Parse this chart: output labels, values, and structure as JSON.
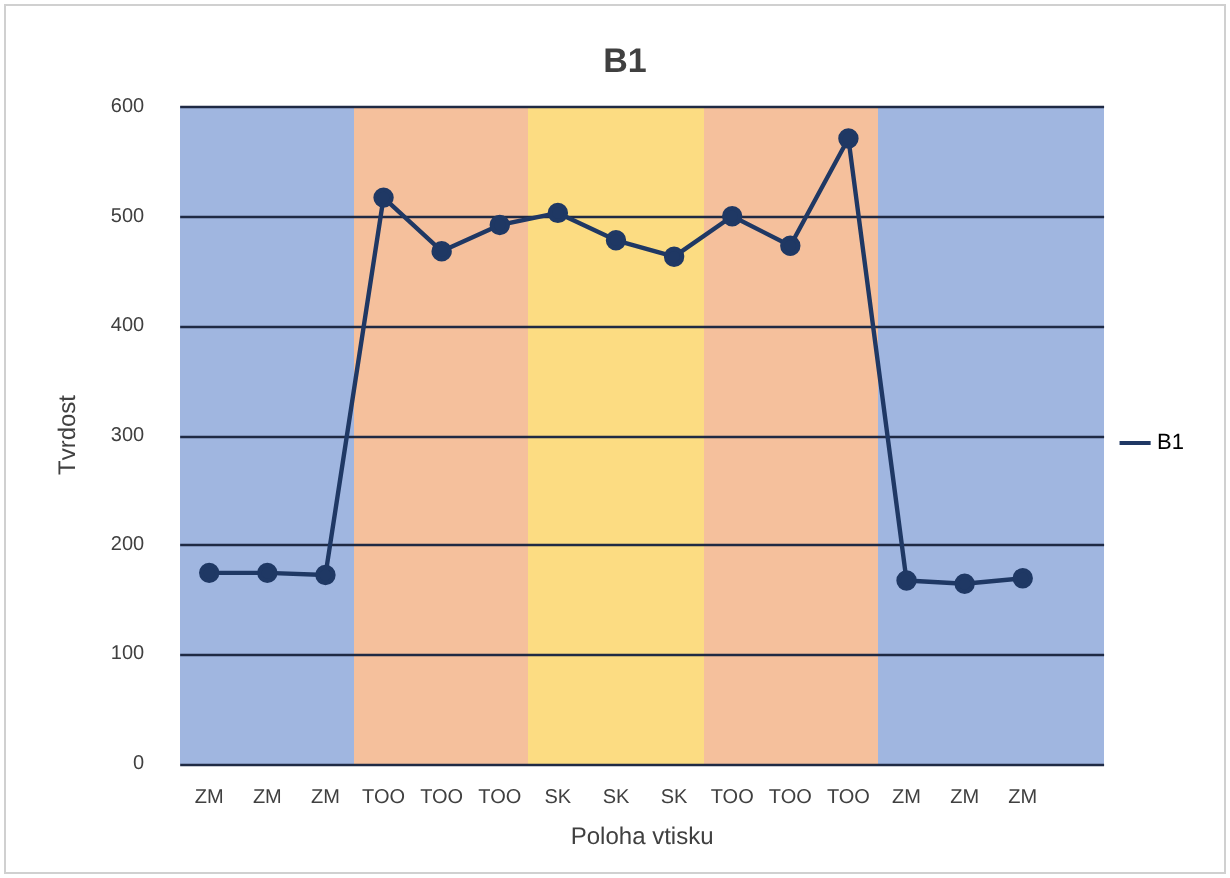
{
  "chart_data": {
    "type": "line",
    "title": "B1",
    "xlabel": "Poloha vtisku",
    "ylabel": "Tvrdost",
    "categories": [
      "ZM",
      "ZM",
      "ZM",
      "TOO",
      "TOO",
      "TOO",
      "SK",
      "SK",
      "SK",
      "TOO",
      "TOO",
      "TOO",
      "ZM",
      "ZM",
      "ZM"
    ],
    "series": [
      {
        "name": "B1",
        "color": "#1f3864",
        "values": [
          174,
          174,
          172,
          517,
          468,
          492,
          503,
          478,
          463,
          500,
          473,
          571,
          167,
          164,
          169
        ]
      }
    ],
    "ylim": [
      0,
      600
    ],
    "yticks": [
      0,
      100,
      200,
      300,
      400,
      500,
      600
    ],
    "grid": "y",
    "legend": "right",
    "marker": "circle",
    "line_style": "solid"
  }
}
